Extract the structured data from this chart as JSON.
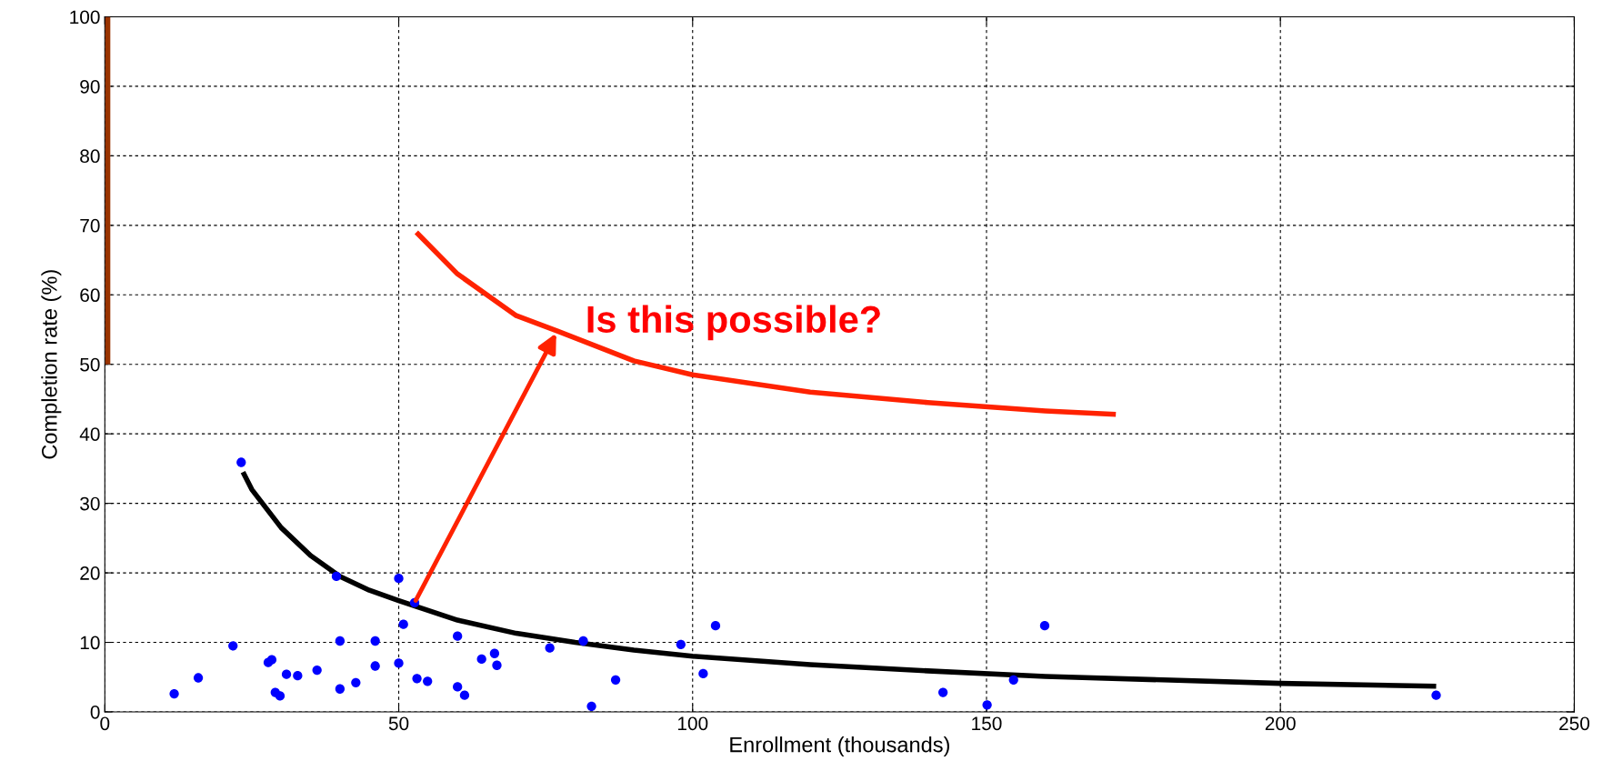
{
  "chart_data": {
    "type": "scatter",
    "xlabel": "Enrollment (thousands)",
    "ylabel": "Completion rate (%)",
    "xlim": [
      0,
      250
    ],
    "xticks": [
      0,
      50,
      100,
      150,
      200,
      250
    ],
    "ylim": [
      0,
      100
    ],
    "yticks": [
      0,
      10,
      20,
      30,
      40,
      50,
      60,
      70,
      80,
      90,
      100
    ],
    "grid": true,
    "series": [
      {
        "color": "#0000ff",
        "marker": "circle",
        "x": [
          23.2,
          11.8,
          15.9,
          21.8,
          27.8,
          28.4,
          29.0,
          29.8,
          30.9,
          32.8,
          36.1,
          39.4,
          40.0,
          40.0,
          42.7,
          46.0,
          46.0,
          50.0,
          50.0,
          52.7,
          50.8,
          53.1,
          54.9,
          60.0,
          60.0,
          61.2,
          64.1,
          66.3,
          66.7,
          75.7,
          81.4,
          82.8,
          86.9,
          98.0,
          101.8,
          103.9,
          142.6,
          150.1,
          154.6,
          159.9,
          226.5
        ],
        "values": [
          35.9,
          2.6,
          4.9,
          9.5,
          7.1,
          7.5,
          2.8,
          2.3,
          5.4,
          5.2,
          6.0,
          19.5,
          10.2,
          3.3,
          4.2,
          10.2,
          6.6,
          19.2,
          7.0,
          15.7,
          12.6,
          4.8,
          4.4,
          10.9,
          3.6,
          2.4,
          7.6,
          8.4,
          6.7,
          9.2,
          10.2,
          0.8,
          4.6,
          9.7,
          5.5,
          12.4,
          2.8,
          1.0,
          4.6,
          12.4,
          2.4
        ]
      },
      {
        "type": "line",
        "marker": "none",
        "color": "#000000",
        "x": [
          23.5,
          25,
          30,
          35,
          40,
          45,
          50,
          60,
          70,
          80,
          90,
          100,
          120,
          140,
          160,
          180,
          200,
          226.5
        ],
        "values": [
          34.5,
          32,
          26.5,
          22.5,
          19.5,
          17.5,
          16,
          13.2,
          11.3,
          10,
          8.9,
          8.0,
          6.8,
          5.9,
          5.1,
          4.6,
          4.1,
          3.7
        ]
      },
      {
        "type": "line",
        "marker": "none",
        "color": "#ff2200",
        "x": [
          53,
          60,
          70,
          77,
          90,
          100,
          120,
          140,
          160,
          172
        ],
        "values": [
          69,
          63,
          57,
          54.8,
          50.5,
          48.5,
          46,
          44.5,
          43.3,
          42.8
        ]
      },
      {
        "type": "line",
        "marker": "none",
        "color": "#993300",
        "x": [
          0.5,
          0.5
        ],
        "values": [
          50,
          100
        ]
      }
    ],
    "annotations": [
      {
        "text": "Is this possible?",
        "x": 77,
        "y": 54.8
      }
    ]
  }
}
